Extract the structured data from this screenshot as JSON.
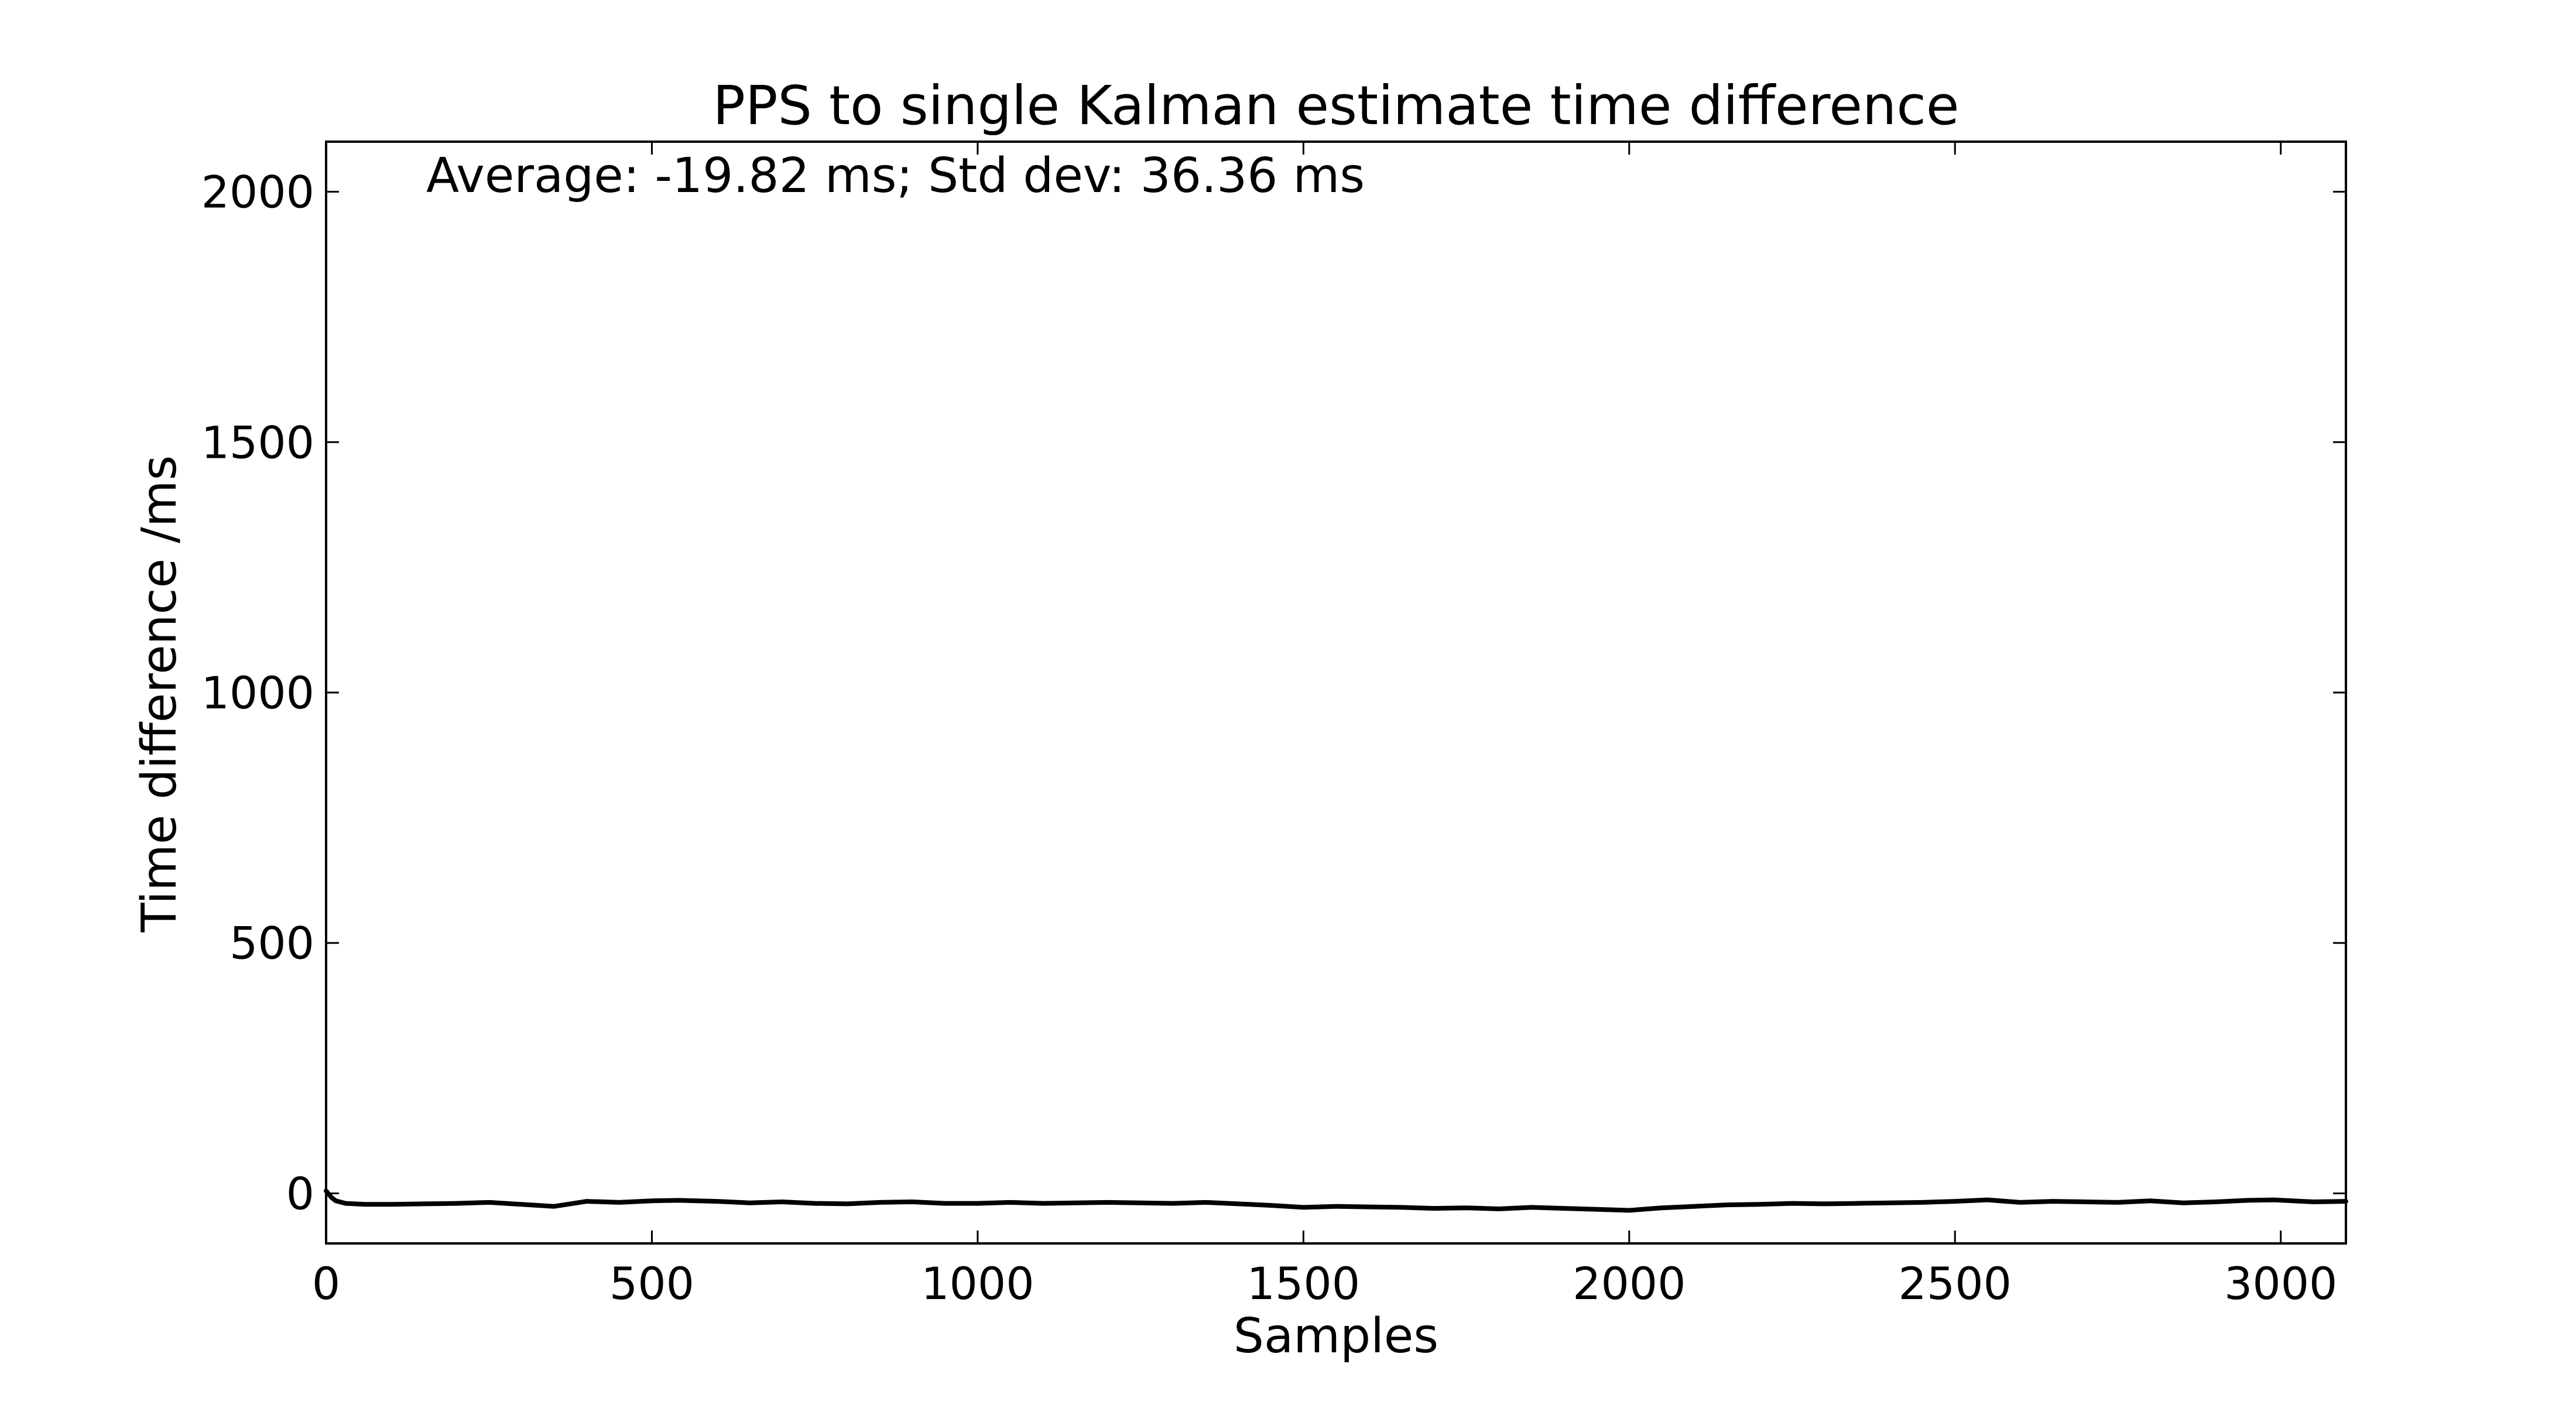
{
  "chart_data": {
    "type": "line",
    "title": "PPS to single Kalman estimate time difference",
    "annotation": "Average: -19.82 ms;  Std dev: 36.36 ms",
    "xlabel": "Samples",
    "ylabel": "Time difference /ms",
    "xlim": [
      0,
      3100
    ],
    "ylim": [
      -100,
      2100
    ],
    "xticks": [
      "0",
      "500",
      "1000",
      "1500",
      "2000",
      "2500",
      "3000"
    ],
    "yticks": [
      "0",
      "500",
      "1000",
      "1500",
      "2000"
    ],
    "grid": false,
    "legend": "none",
    "line_color": "#000000",
    "series": [
      {
        "x": [
          0,
          8,
          15,
          30,
          60,
          100,
          150,
          200,
          250,
          300,
          350,
          400,
          450,
          500,
          540,
          600,
          650,
          700,
          750,
          800,
          850,
          900,
          950,
          1000,
          1050,
          1100,
          1150,
          1200,
          1250,
          1300,
          1350,
          1400,
          1450,
          1500,
          1550,
          1600,
          1650,
          1700,
          1750,
          1800,
          1850,
          1900,
          1950,
          2000,
          2050,
          2100,
          2150,
          2200,
          2250,
          2300,
          2350,
          2400,
          2450,
          2500,
          2550,
          2600,
          2650,
          2700,
          2750,
          2800,
          2850,
          2900,
          2950,
          2990,
          3050,
          3100
        ],
        "y": [
          5,
          -8,
          -15,
          -20,
          -22,
          -22,
          -21,
          -20,
          -18,
          -22,
          -26,
          -16,
          -18,
          -15,
          -14,
          -16,
          -19,
          -17,
          -20,
          -21,
          -18,
          -17,
          -20,
          -20,
          -18,
          -20,
          -19,
          -18,
          -19,
          -20,
          -18,
          -21,
          -24,
          -28,
          -26,
          -27,
          -28,
          -30,
          -29,
          -31,
          -28,
          -30,
          -32,
          -34,
          -29,
          -26,
          -23,
          -22,
          -20,
          -21,
          -20,
          -19,
          -18,
          -16,
          -13,
          -18,
          -16,
          -17,
          -18,
          -15,
          -19,
          -17,
          -14,
          -13,
          -17,
          -16
        ]
      }
    ]
  }
}
